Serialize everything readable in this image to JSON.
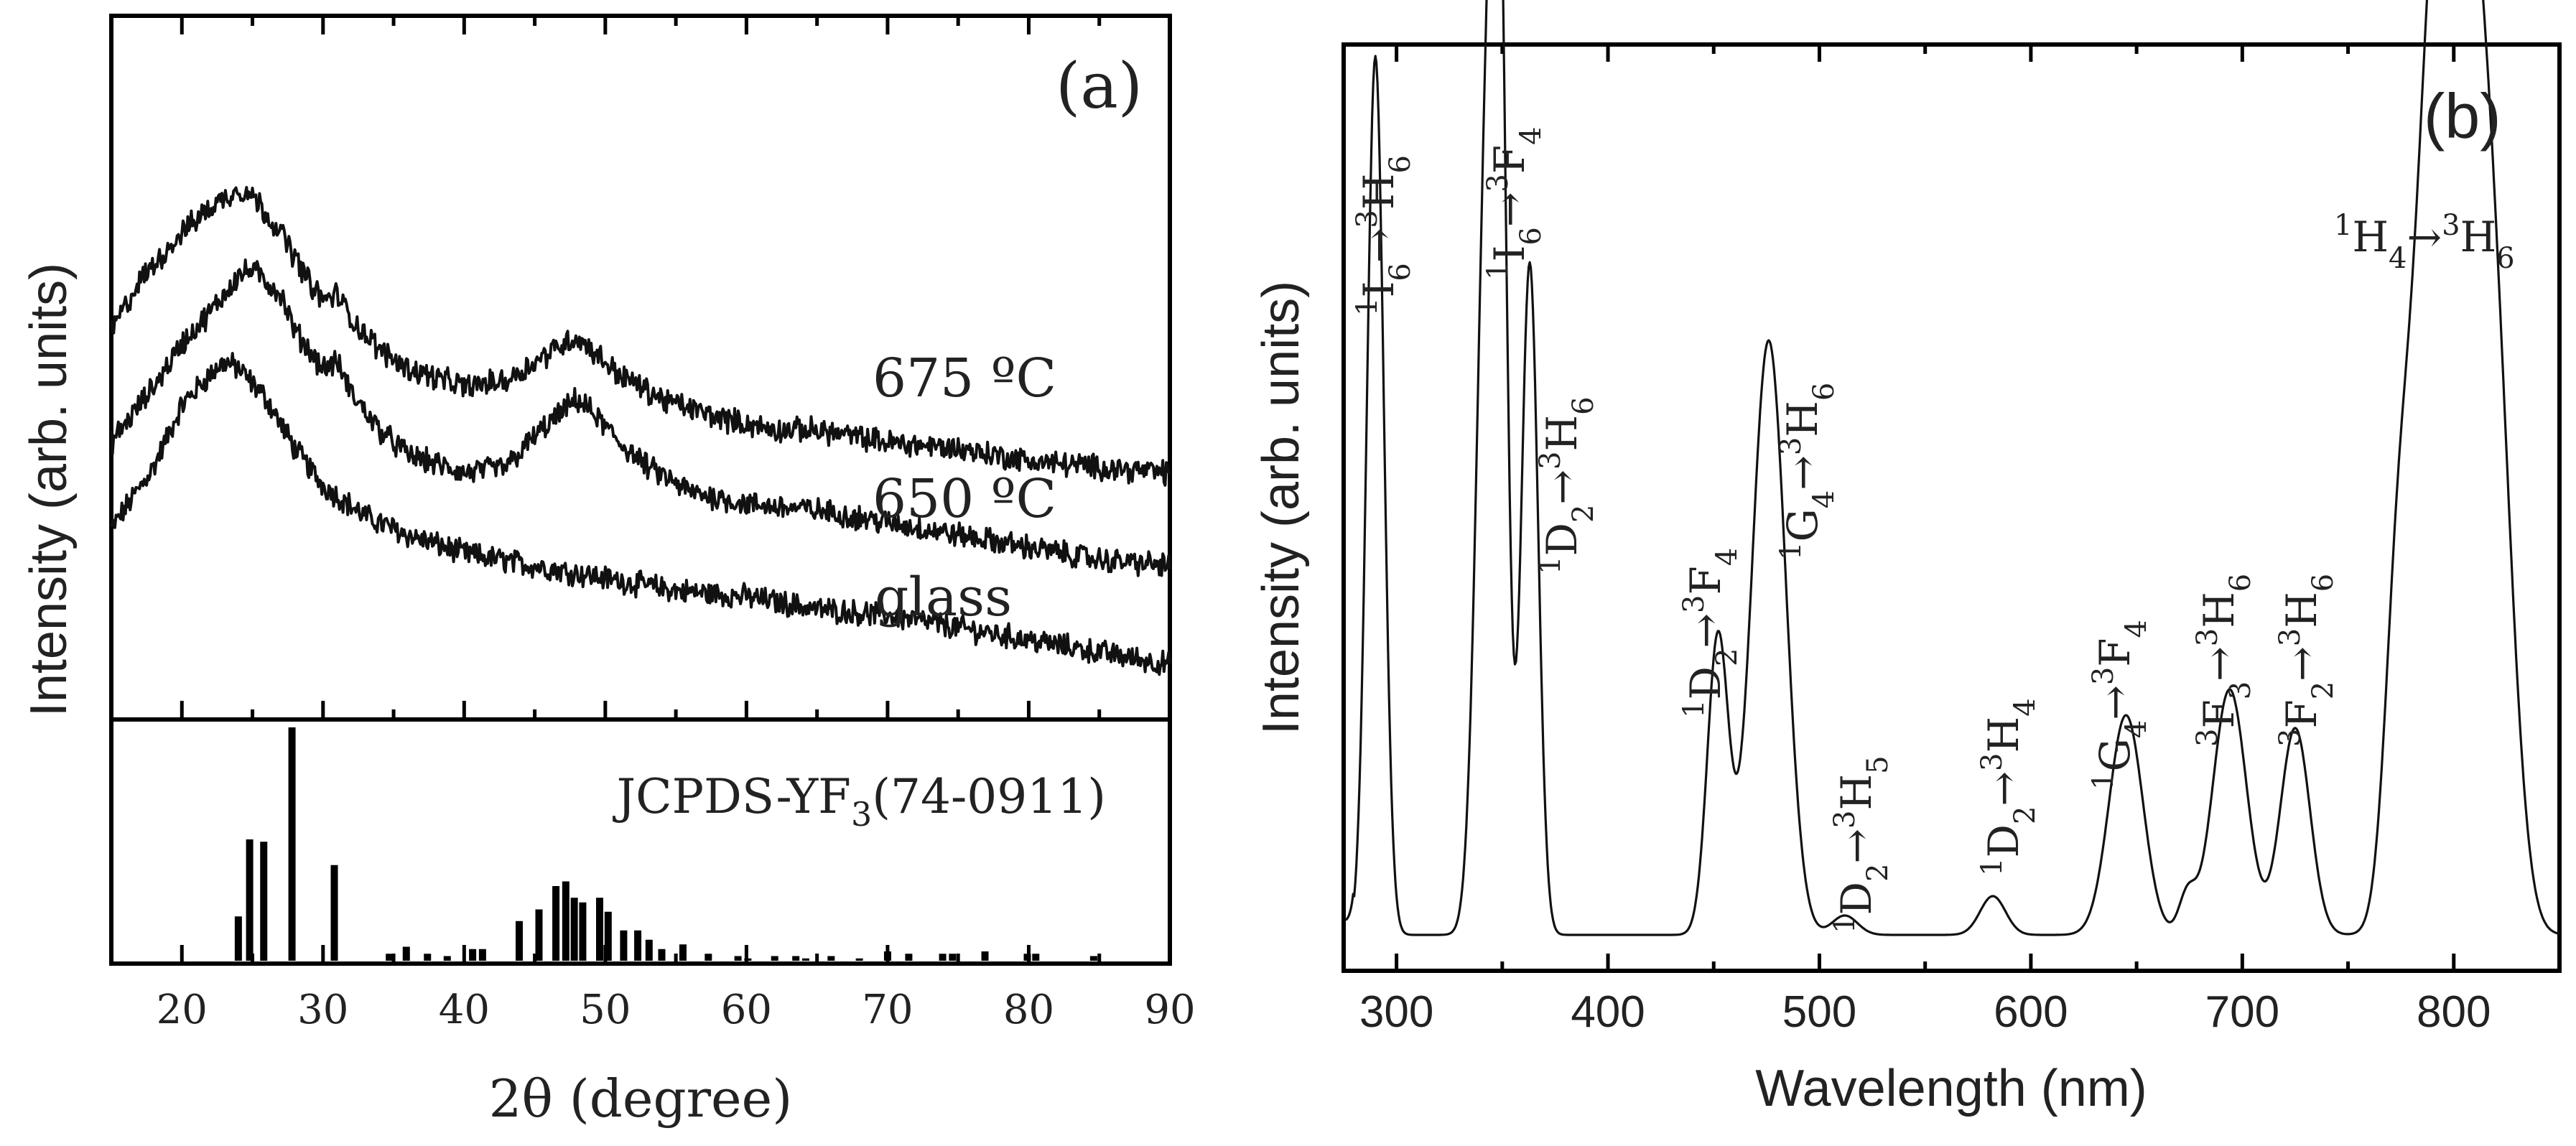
{
  "chart_data": [
    {
      "panel": "(a)",
      "type": "line",
      "xlabel": "2θ (degree)",
      "ylabel": "Intensity (arb. units)",
      "xlim": [
        15,
        90
      ],
      "x_ticks": [
        20,
        30,
        40,
        50,
        60,
        70,
        80,
        90
      ],
      "grid": false,
      "series": [
        {
          "name": "glass",
          "label": "glass",
          "order": 0,
          "points": [
            [
              15,
              0.26
            ],
            [
              18,
              0.36
            ],
            [
              20,
              0.46
            ],
            [
              22,
              0.51
            ],
            [
              23,
              0.53
            ],
            [
              24,
              0.52
            ],
            [
              26,
              0.47
            ],
            [
              28,
              0.39
            ],
            [
              30,
              0.33
            ],
            [
              33,
              0.28
            ],
            [
              36,
              0.25
            ],
            [
              40,
              0.22
            ],
            [
              45,
              0.2
            ],
            [
              50,
              0.18
            ],
            [
              55,
              0.16
            ],
            [
              60,
              0.15
            ],
            [
              65,
              0.13
            ],
            [
              70,
              0.12
            ],
            [
              75,
              0.1
            ],
            [
              80,
              0.08
            ],
            [
              85,
              0.06
            ],
            [
              90,
              0.04
            ]
          ]
        },
        {
          "name": "650 ºC",
          "label": "650 ºC",
          "superscript": "o",
          "unit": "C",
          "order": 1,
          "points": [
            [
              15,
              0.4
            ],
            [
              18,
              0.49
            ],
            [
              20,
              0.56
            ],
            [
              22,
              0.61
            ],
            [
              24,
              0.67
            ],
            [
              25,
              0.68
            ],
            [
              27,
              0.64
            ],
            [
              28,
              0.58
            ],
            [
              30,
              0.52
            ],
            [
              31,
              0.53
            ],
            [
              32,
              0.48
            ],
            [
              34,
              0.42
            ],
            [
              36,
              0.38
            ],
            [
              40,
              0.35
            ],
            [
              43,
              0.36
            ],
            [
              45,
              0.41
            ],
            [
              47,
              0.45
            ],
            [
              48,
              0.47
            ],
            [
              49,
              0.45
            ],
            [
              51,
              0.4
            ],
            [
              53,
              0.36
            ],
            [
              56,
              0.32
            ],
            [
              60,
              0.3
            ],
            [
              65,
              0.29
            ],
            [
              70,
              0.27
            ],
            [
              75,
              0.25
            ],
            [
              80,
              0.23
            ],
            [
              85,
              0.21
            ],
            [
              90,
              0.2
            ]
          ]
        },
        {
          "name": "675 ºC",
          "label": "675 ºC",
          "superscript": "o",
          "unit": "C",
          "order": 2,
          "points": [
            [
              15,
              0.58
            ],
            [
              17,
              0.66
            ],
            [
              20,
              0.74
            ],
            [
              22,
              0.78
            ],
            [
              24,
              0.81
            ],
            [
              25,
              0.8
            ],
            [
              27,
              0.74
            ],
            [
              29,
              0.66
            ],
            [
              30,
              0.63
            ],
            [
              31,
              0.64
            ],
            [
              32,
              0.6
            ],
            [
              34,
              0.55
            ],
            [
              36,
              0.52
            ],
            [
              40,
              0.49
            ],
            [
              43,
              0.5
            ],
            [
              45,
              0.53
            ],
            [
              47,
              0.56
            ],
            [
              48,
              0.57
            ],
            [
              49,
              0.55
            ],
            [
              51,
              0.51
            ],
            [
              54,
              0.47
            ],
            [
              58,
              0.44
            ],
            [
              62,
              0.42
            ],
            [
              65,
              0.42
            ],
            [
              70,
              0.4
            ],
            [
              75,
              0.39
            ],
            [
              80,
              0.37
            ],
            [
              85,
              0.36
            ],
            [
              90,
              0.35
            ]
          ]
        }
      ],
      "reference": {
        "label": "JCPDS-YF",
        "label_sub": "3",
        "label_tail": "(74-0911)",
        "bars": [
          [
            24,
            0.19
          ],
          [
            24.8,
            0.52
          ],
          [
            25.8,
            0.51
          ],
          [
            27.8,
            1.0
          ],
          [
            30.8,
            0.41
          ],
          [
            34.7,
            0.03
          ],
          [
            35.9,
            0.06
          ],
          [
            37.4,
            0.03
          ],
          [
            38.8,
            0.02
          ],
          [
            40.6,
            0.05
          ],
          [
            41.3,
            0.05
          ],
          [
            43.9,
            0.17
          ],
          [
            45.3,
            0.22
          ],
          [
            46.5,
            0.32
          ],
          [
            47.2,
            0.34
          ],
          [
            47.8,
            0.27
          ],
          [
            48.4,
            0.25
          ],
          [
            49.6,
            0.27
          ],
          [
            50.2,
            0.21
          ],
          [
            51.3,
            0.13
          ],
          [
            52.3,
            0.13
          ],
          [
            53.1,
            0.09
          ],
          [
            54.0,
            0.05
          ],
          [
            55.5,
            0.07
          ],
          [
            57.3,
            0.03
          ],
          [
            59.4,
            0.02
          ],
          [
            60.1,
            0.01
          ],
          [
            62.0,
            0.02
          ],
          [
            63.5,
            0.02
          ],
          [
            64.2,
            0.01
          ],
          [
            66.0,
            0.02
          ],
          [
            68.0,
            0.01
          ],
          [
            70.0,
            0.04
          ],
          [
            71.5,
            0.03
          ],
          [
            73.9,
            0.03
          ],
          [
            74.6,
            0.03
          ],
          [
            76.9,
            0.04
          ],
          [
            79.9,
            0.03
          ],
          [
            80.5,
            0.03
          ],
          [
            84.6,
            0.02
          ]
        ]
      }
    },
    {
      "panel": "(b)",
      "type": "line",
      "xlabel": "Wavelength (nm)",
      "ylabel": "Intensity (arb. units)",
      "xlim": [
        275,
        850
      ],
      "x_ticks": [
        300,
        400,
        500,
        600,
        700,
        800
      ],
      "grid": false,
      "series": [
        {
          "name": "emission",
          "peaks": [
            [
              290,
              0.68,
              4
            ],
            [
              343,
              0.62,
              5
            ],
            [
              349,
              0.56,
              3.5
            ],
            [
              363,
              0.52,
              4
            ],
            [
              452,
              0.23,
              5
            ],
            [
              476,
              0.46,
              8
            ],
            [
              512,
              0.015,
              6
            ],
            [
              582,
              0.03,
              6
            ],
            [
              645,
              0.17,
              8
            ],
            [
              674,
              0.03,
              4
            ],
            [
              694,
              0.19,
              8
            ],
            [
              725,
              0.16,
              7
            ],
            [
              773,
              0.19,
              6
            ],
            [
              790,
              0.62,
              10
            ],
            [
              808,
              0.67,
              11
            ],
            [
              822,
              0.18,
              8
            ]
          ]
        }
      ],
      "annotations": [
        {
          "parts": [
            [
              "sup",
              "1"
            ],
            [
              "t",
              "I"
            ],
            [
              "sub",
              "6"
            ],
            [
              "t",
              "→"
            ],
            [
              "sup",
              "3"
            ],
            [
              "t",
              "H"
            ],
            [
              "sub",
              "6"
            ]
          ]
        },
        {
          "parts": [
            [
              "sup",
              "1"
            ],
            [
              "t",
              "I"
            ],
            [
              "sub",
              "6"
            ],
            [
              "t",
              "→"
            ],
            [
              "sup",
              "3"
            ],
            [
              "t",
              "F"
            ],
            [
              "sub",
              "4"
            ]
          ]
        },
        {
          "parts": [
            [
              "sup",
              "1"
            ],
            [
              "t",
              "D"
            ],
            [
              "sub",
              "2"
            ],
            [
              "t",
              "→"
            ],
            [
              "sup",
              "3"
            ],
            [
              "t",
              "H"
            ],
            [
              "sub",
              "6"
            ]
          ]
        },
        {
          "parts": [
            [
              "sup",
              "1"
            ],
            [
              "t",
              "D"
            ],
            [
              "sub",
              "2"
            ],
            [
              "t",
              "→"
            ],
            [
              "sup",
              "3"
            ],
            [
              "t",
              "F"
            ],
            [
              "sub",
              "4"
            ]
          ]
        },
        {
          "parts": [
            [
              "sup",
              "1"
            ],
            [
              "t",
              "G"
            ],
            [
              "sub",
              "4"
            ],
            [
              "t",
              "→"
            ],
            [
              "sup",
              "3"
            ],
            [
              "t",
              "H"
            ],
            [
              "sub",
              "6"
            ]
          ]
        },
        {
          "parts": [
            [
              "sup",
              "1"
            ],
            [
              "t",
              "D"
            ],
            [
              "sub",
              "2"
            ],
            [
              "t",
              "→"
            ],
            [
              "sup",
              "3"
            ],
            [
              "t",
              "H"
            ],
            [
              "sub",
              "5"
            ]
          ]
        },
        {
          "parts": [
            [
              "sup",
              "1"
            ],
            [
              "t",
              "D"
            ],
            [
              "sub",
              "2"
            ],
            [
              "t",
              "→"
            ],
            [
              "sup",
              "3"
            ],
            [
              "t",
              "H"
            ],
            [
              "sub",
              "4"
            ]
          ]
        },
        {
          "parts": [
            [
              "sup",
              "1"
            ],
            [
              "t",
              "G"
            ],
            [
              "sub",
              "4"
            ],
            [
              "t",
              "→"
            ],
            [
              "sup",
              "3"
            ],
            [
              "t",
              "F"
            ],
            [
              "sub",
              "4"
            ]
          ]
        },
        {
          "parts": [
            [
              "sup",
              "3"
            ],
            [
              "t",
              "F"
            ],
            [
              "sub",
              "3"
            ],
            [
              "t",
              "→"
            ],
            [
              "sup",
              "3"
            ],
            [
              "t",
              "H"
            ],
            [
              "sub",
              "6"
            ]
          ]
        },
        {
          "parts": [
            [
              "sup",
              "3"
            ],
            [
              "t",
              "F"
            ],
            [
              "sub",
              "2"
            ],
            [
              "t",
              "→"
            ],
            [
              "sup",
              "3"
            ],
            [
              "t",
              "H"
            ],
            [
              "sub",
              "6"
            ]
          ]
        },
        {
          "parts": [
            [
              "sup",
              "1"
            ],
            [
              "t",
              "H"
            ],
            [
              "sub",
              "4"
            ],
            [
              "t",
              "→"
            ],
            [
              "sup",
              "3"
            ],
            [
              "t",
              "H"
            ],
            [
              "sub",
              "6"
            ]
          ]
        }
      ]
    }
  ]
}
